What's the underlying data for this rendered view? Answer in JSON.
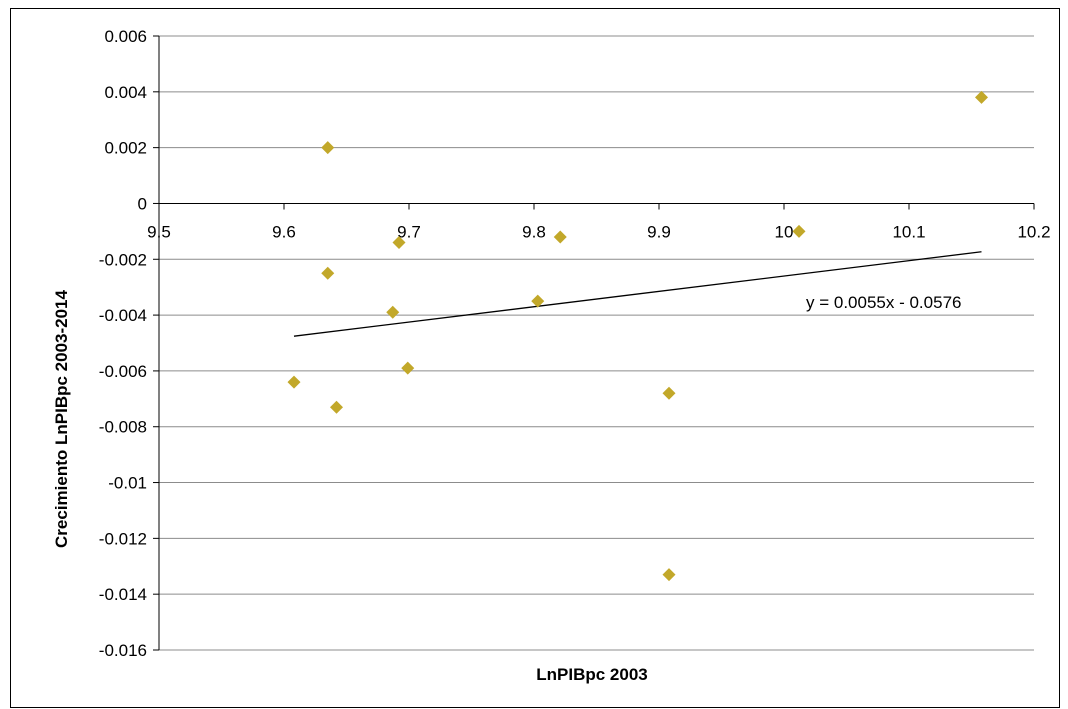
{
  "chart_data": {
    "type": "scatter",
    "xlabel": "LnPIBpc 2003",
    "ylabel": "Crecimiento LnPIBpc 2003-2014",
    "xlim": [
      9.5,
      10.2
    ],
    "ylim": [
      -0.016,
      0.006
    ],
    "x_ticks": [
      9.5,
      9.6,
      9.7,
      9.8,
      9.9,
      10,
      10.1,
      10.2
    ],
    "x_tick_labels": [
      "9.5",
      "9.6",
      "9.7",
      "9.8",
      "9.9",
      "10",
      "10.1",
      "10.2"
    ],
    "y_ticks": [
      0.006,
      0.004,
      0.002,
      0,
      -0.002,
      -0.004,
      -0.006,
      -0.008,
      -0.01,
      -0.012,
      -0.014,
      -0.016
    ],
    "y_tick_labels": [
      "0.006",
      "0.004",
      "0.002",
      "0",
      "-0.002",
      "-0.004",
      "-0.006",
      "-0.008",
      "-0.01",
      "-0.012",
      "-0.014",
      "-0.016"
    ],
    "grid": "horizontal",
    "series": [
      {
        "color": "#c2a82a",
        "marker": "diamond",
        "points": [
          {
            "x": 9.635,
            "y": 0.002
          },
          {
            "x": 10.158,
            "y": 0.0038
          },
          {
            "x": 9.692,
            "y": -0.0014
          },
          {
            "x": 9.821,
            "y": -0.0012
          },
          {
            "x": 10.012,
            "y": -0.001
          },
          {
            "x": 9.635,
            "y": -0.0025
          },
          {
            "x": 9.687,
            "y": -0.0039
          },
          {
            "x": 9.803,
            "y": -0.0035
          },
          {
            "x": 9.699,
            "y": -0.0059
          },
          {
            "x": 9.608,
            "y": -0.0064
          },
          {
            "x": 9.642,
            "y": -0.0073
          },
          {
            "x": 9.908,
            "y": -0.0068
          },
          {
            "x": 9.908,
            "y": -0.0133
          }
        ]
      }
    ],
    "trendline": {
      "type": "linear",
      "slope": 0.0055,
      "intercept": -0.0576,
      "x_range": [
        9.608,
        10.158
      ],
      "equation_label": "y = 0.0055x  - 0.0576",
      "color": "#000000"
    }
  }
}
